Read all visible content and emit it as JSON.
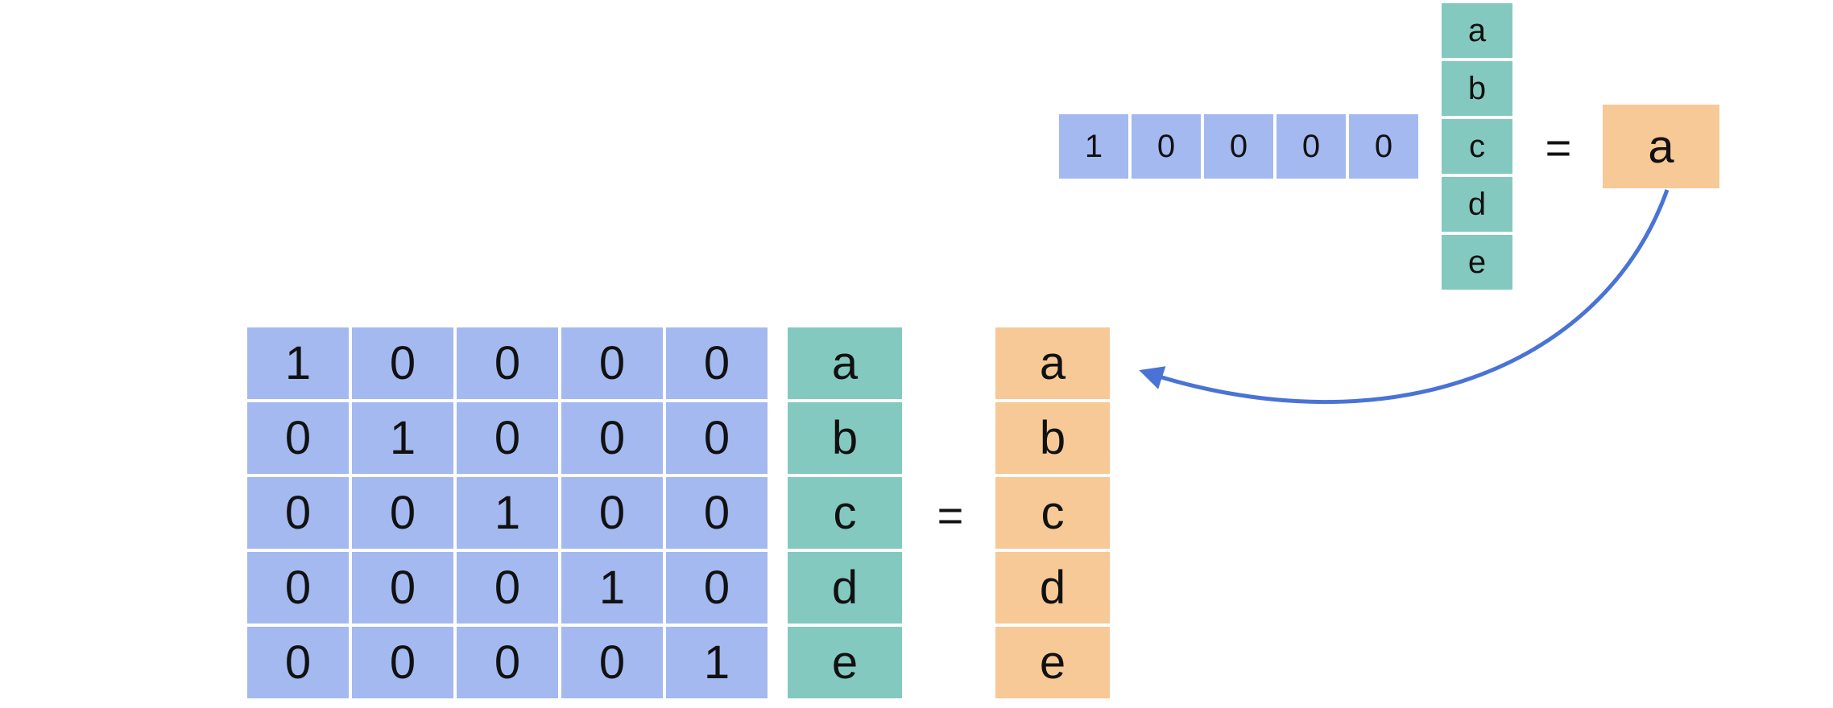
{
  "top": {
    "row_vector": [
      "1",
      "0",
      "0",
      "0",
      "0"
    ],
    "column_vector": [
      "a",
      "b",
      "c",
      "d",
      "e"
    ],
    "equals": "=",
    "result": "a"
  },
  "bottom": {
    "matrix": [
      [
        "1",
        "0",
        "0",
        "0",
        "0"
      ],
      [
        "0",
        "1",
        "0",
        "0",
        "0"
      ],
      [
        "0",
        "0",
        "1",
        "0",
        "0"
      ],
      [
        "0",
        "0",
        "0",
        "1",
        "0"
      ],
      [
        "0",
        "0",
        "0",
        "0",
        "1"
      ]
    ],
    "column_vector": [
      "a",
      "b",
      "c",
      "d",
      "e"
    ],
    "equals": "=",
    "result_vector": [
      "a",
      "b",
      "c",
      "d",
      "e"
    ]
  },
  "colors": {
    "blue": "#a4b9f0",
    "teal": "#84c9bf",
    "orange": "#f6c996",
    "arrow": "#4a73d6"
  },
  "icons": [
    "curved-arrow-icon"
  ]
}
